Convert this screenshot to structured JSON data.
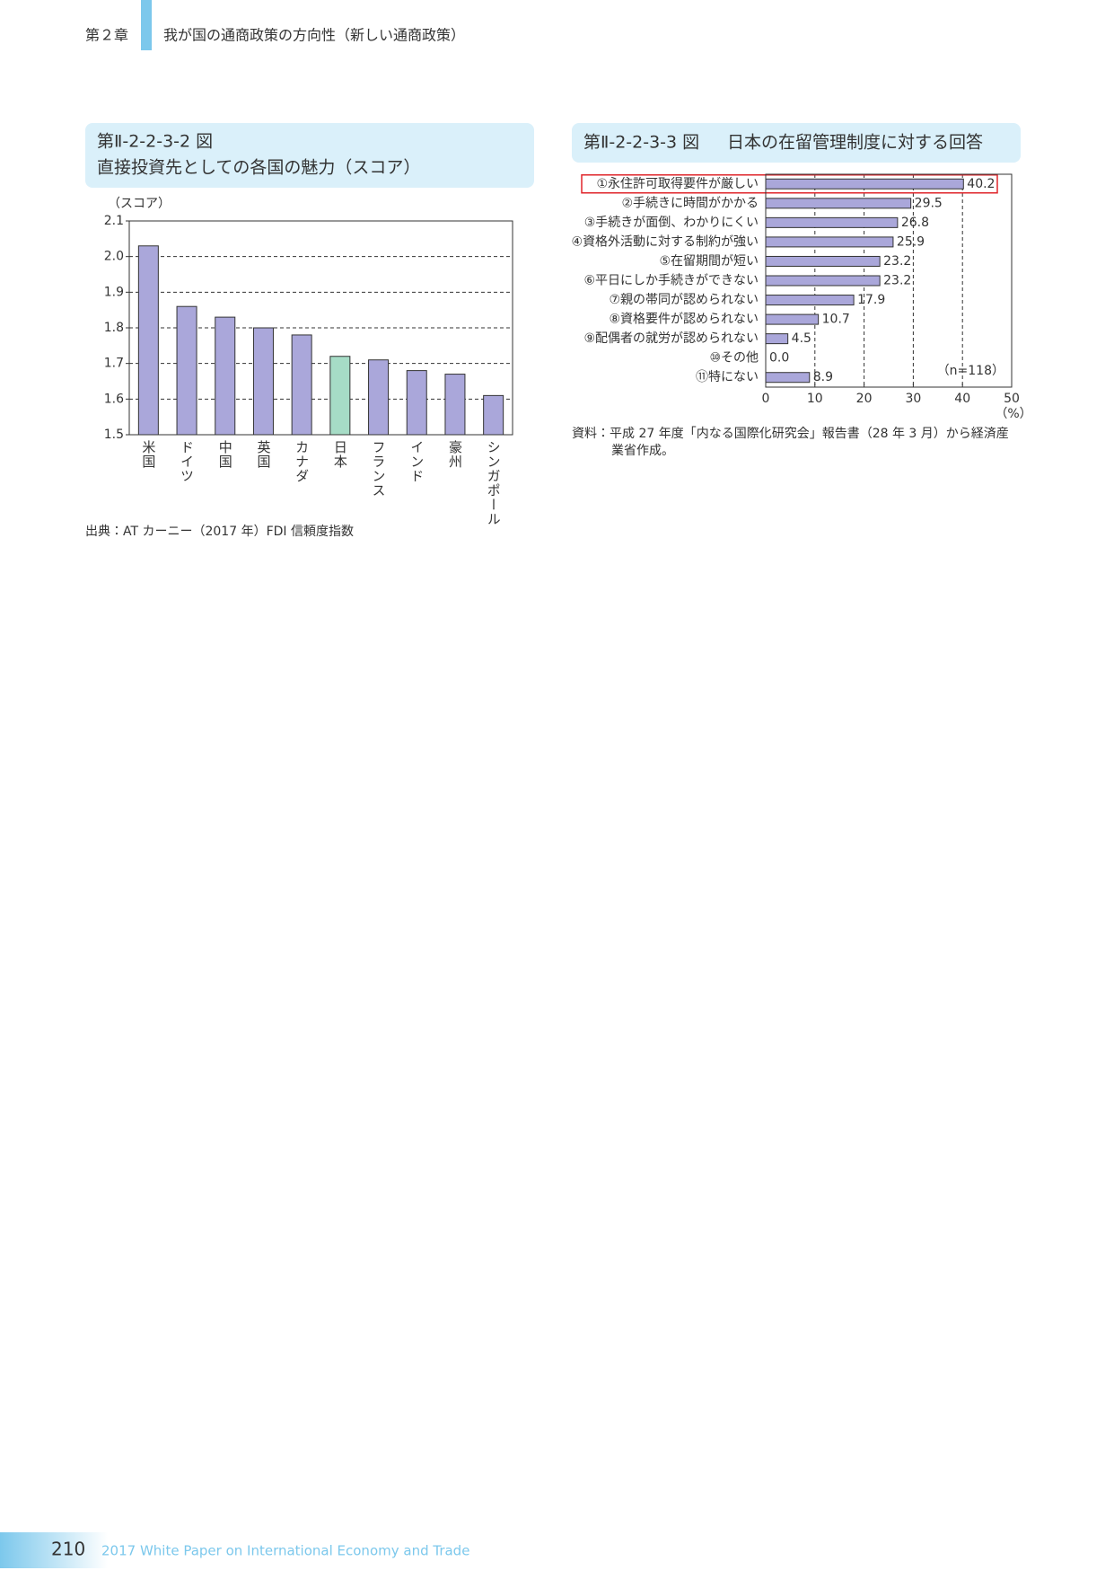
{
  "header": {
    "chapter": "第２章",
    "title": "我が国の通商政策の方向性（新しい通商政策）"
  },
  "chart_data": [
    {
      "type": "bar",
      "figure_number": "第Ⅱ-2-2-3-2 図",
      "title": "直接投資先としての各国の魅力（スコア）",
      "y_label": "（スコア）",
      "categories": [
        "米国",
        "ドイツ",
        "中国",
        "英国",
        "カナダ",
        "日本",
        "フランス",
        "インド",
        "豪州",
        "シンガポール"
      ],
      "values": [
        2.03,
        1.86,
        1.83,
        1.8,
        1.78,
        1.72,
        1.71,
        1.68,
        1.67,
        1.61
      ],
      "colors": [
        "#aaa7da",
        "#aaa7da",
        "#aaa7da",
        "#aaa7da",
        "#aaa7da",
        "#a6dcc6",
        "#aaa7da",
        "#aaa7da",
        "#aaa7da",
        "#aaa7da"
      ],
      "ylim": [
        1.5,
        2.1
      ],
      "yticks": [
        1.5,
        1.6,
        1.7,
        1.8,
        1.9,
        {
          "value": 2,
          "label": "2.0"
        },
        2.1
      ],
      "grid": true,
      "source": "出典：AT カーニー（2017 年）FDI 信頼度指数"
    },
    {
      "type": "hbar",
      "figure_number": "第Ⅱ-2-2-3-3 図",
      "title": "日本の在留管理制度に対する回答",
      "categories": [
        "①永住許可取得要件が厳しい",
        "②手続きに時間がかかる",
        "③手続きが面倒、わかりにくい",
        "④資格外活動に対する制約が強い",
        "⑤在留期間が短い",
        "⑥平日にしか手続きができない",
        "⑦親の帯同が認められない",
        "⑧資格要件が認められない",
        "⑨配偶者の就労が認められない",
        "⑩その他",
        "⑪特にない"
      ],
      "values": [
        40.2,
        29.5,
        26.8,
        25.9,
        23.2,
        23.2,
        17.9,
        10.7,
        4.5,
        0,
        8.9
      ],
      "value_labels": [
        "40.2",
        "29.5",
        "26.8",
        "25.9",
        "23.2",
        "23.2",
        "17.9",
        "10.7",
        "4.5",
        "0.0",
        "8.9"
      ],
      "color": "#aaa7da",
      "highlight": [
        0
      ],
      "xlim": [
        0,
        50
      ],
      "xticks": [
        0,
        10,
        20,
        30,
        40,
        50
      ],
      "grid": true,
      "x_unit": "（%）",
      "annotation": "（n=118）",
      "source": "資料：平成 27 年度「内なる国際化研究会」報告書（28 年 3 月）から経済産業省作成。"
    }
  ],
  "footer": {
    "page": "210",
    "text": "2017 White Paper on International Economy and Trade"
  }
}
